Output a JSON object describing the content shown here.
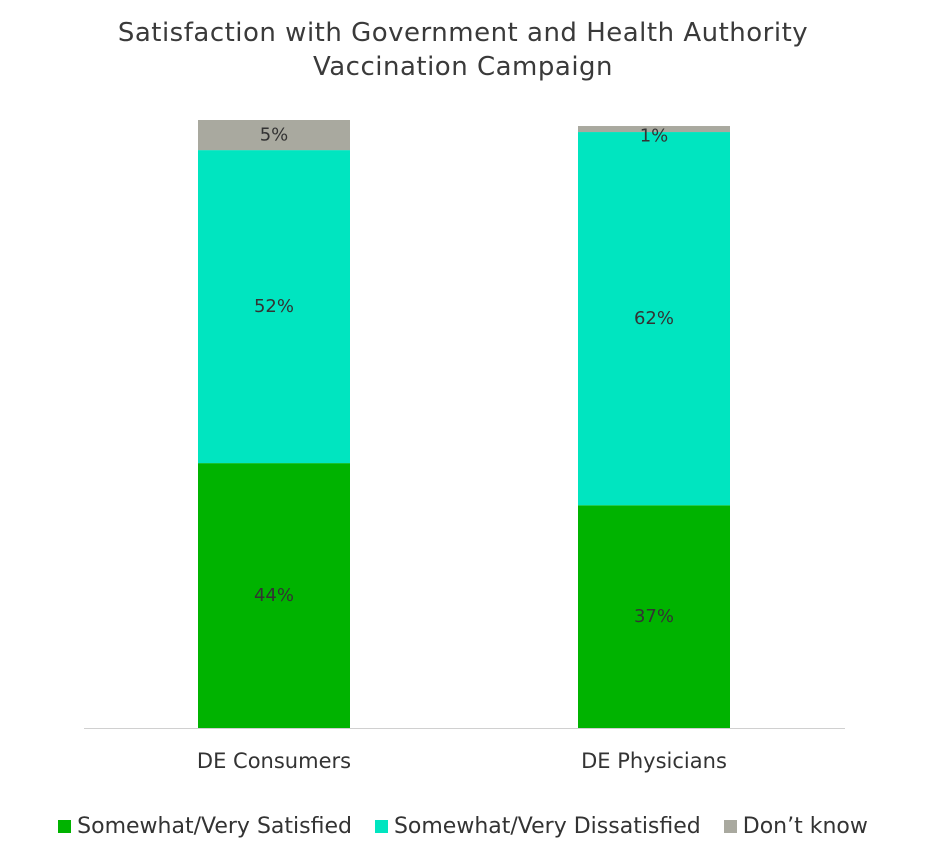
{
  "chart_data": {
    "type": "bar",
    "stacked": true,
    "title": [
      "Satisfaction with Government and Health Authority",
      "Vaccination Campaign"
    ],
    "categories": [
      "DE Consumers",
      "DE Physicians"
    ],
    "series": [
      {
        "name": "Somewhat/Very Satisfied",
        "color": "#00b300",
        "values": [
          44,
          37
        ],
        "labels": [
          "44%",
          "37%"
        ]
      },
      {
        "name": "Somewhat/Very Dissatisfied",
        "color": "#00e5c0",
        "values": [
          52,
          62
        ],
        "labels": [
          "52%",
          "62%"
        ]
      },
      {
        "name": "Don’t know",
        "color": "#a9a99f",
        "values": [
          5,
          1
        ],
        "labels": [
          "5%",
          "1%"
        ]
      }
    ],
    "ylim": [
      0,
      101
    ],
    "grid": false,
    "legend_position": "bottom"
  }
}
